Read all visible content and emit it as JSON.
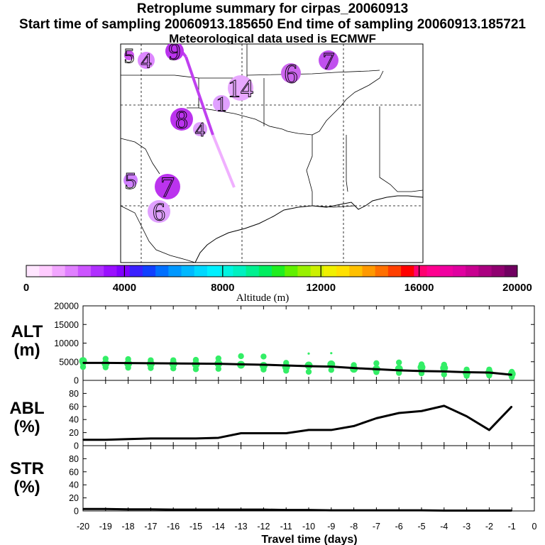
{
  "titles": {
    "line1": "Retroplume summary for cirpas_20060913",
    "line2": "Start time of sampling 20060913.185650     End time of sampling 20060913.185721",
    "line3": "Meteorological data used is ECMWF"
  },
  "colorbar": {
    "ticks": [
      "0",
      "4000",
      "8000",
      "12000",
      "16000",
      "20000"
    ],
    "label": "Altitude (m)",
    "min": 0,
    "max": 20000
  },
  "map_labels": [
    {
      "text": "5",
      "days": 5
    },
    {
      "text": "4",
      "days": 4
    },
    {
      "text": "9",
      "days": 9
    },
    {
      "text": "6",
      "days": 6
    },
    {
      "text": "7",
      "days": 7
    },
    {
      "text": "14",
      "days": 14
    },
    {
      "text": "1",
      "days": 1
    },
    {
      "text": "8",
      "days": 8
    },
    {
      "text": "4",
      "days": 4
    },
    {
      "text": "5",
      "days": 5
    },
    {
      "text": "7",
      "days": 7
    },
    {
      "text": "6",
      "days": 6
    }
  ],
  "chart_data": [
    {
      "type": "line",
      "name": "ALT",
      "ylabel": "ALT (m)",
      "ylim": [
        0,
        20000
      ],
      "yticks": [
        0,
        5000,
        10000,
        15000,
        20000
      ],
      "x": [
        -20,
        -19,
        -18,
        -17,
        -16,
        -15,
        -14,
        -13,
        -12,
        -11,
        -10,
        -9,
        -8,
        -7,
        -6,
        -5,
        -4,
        -3,
        -2,
        -1
      ],
      "values": [
        4700,
        4700,
        4650,
        4600,
        4550,
        4500,
        4450,
        4300,
        4200,
        4000,
        3800,
        3700,
        3300,
        3000,
        2700,
        2500,
        2400,
        2200,
        2100,
        1500
      ],
      "scatter_color": "#33ee66",
      "scatter": [
        {
          "x": -20,
          "y": [
            4500,
            5200,
            3600
          ]
        },
        {
          "x": -19,
          "y": [
            5800,
            4500,
            3500
          ]
        },
        {
          "x": -18,
          "y": [
            5700,
            4500,
            3400
          ]
        },
        {
          "x": -17,
          "y": [
            5400,
            4400,
            3300
          ]
        },
        {
          "x": -16,
          "y": [
            5400,
            4400,
            3200
          ]
        },
        {
          "x": -15,
          "y": [
            5500,
            4300,
            3000
          ]
        },
        {
          "x": -14,
          "y": [
            5900,
            4500,
            3100
          ]
        },
        {
          "x": -13,
          "y": [
            6500,
            4200
          ]
        },
        {
          "x": -12,
          "y": [
            6400,
            3900,
            2900
          ]
        },
        {
          "x": -11,
          "y": [
            4700,
            3600,
            2600
          ]
        },
        {
          "x": -10,
          "y": [
            7200,
            4000,
            2300
          ]
        },
        {
          "x": -9,
          "y": [
            7300,
            4300,
            2800
          ]
        },
        {
          "x": -8,
          "y": [
            4100,
            3100
          ]
        },
        {
          "x": -7,
          "y": [
            4600,
            3000,
            2200
          ]
        },
        {
          "x": -6,
          "y": [
            4800,
            3100,
            2000
          ]
        },
        {
          "x": -5,
          "y": [
            4300,
            3500,
            1900
          ]
        },
        {
          "x": -4,
          "y": [
            4200,
            3300,
            1600
          ]
        },
        {
          "x": -3,
          "y": [
            2900,
            2000,
            1200
          ]
        },
        {
          "x": -2,
          "y": [
            2900,
            2100,
            1300
          ]
        },
        {
          "x": -1,
          "y": [
            2300,
            1700,
            900
          ]
        }
      ]
    },
    {
      "type": "line",
      "name": "ABL",
      "ylabel": "ABL (%)",
      "ylim": [
        0,
        100
      ],
      "yticks": [
        0,
        20,
        40,
        60,
        80
      ],
      "x": [
        -20,
        -19,
        -18,
        -17,
        -16,
        -15,
        -14,
        -13,
        -12,
        -11,
        -10,
        -9,
        -8,
        -7,
        -6,
        -5,
        -4,
        -3,
        -2,
        -1
      ],
      "values": [
        9,
        9,
        10,
        11,
        11,
        11,
        12,
        19,
        19,
        19,
        24,
        24,
        30,
        42,
        50,
        53,
        61,
        45,
        24,
        60
      ]
    },
    {
      "type": "line",
      "name": "STR",
      "ylabel": "STR (%)",
      "ylim": [
        0,
        100
      ],
      "yticks": [
        0,
        20,
        40,
        60,
        80
      ],
      "x": [
        -20,
        -19,
        -18,
        -17,
        -16,
        -15,
        -14,
        -13,
        -12,
        -11,
        -10,
        -9,
        -8,
        -7,
        -6,
        -5,
        -4,
        -3,
        -2,
        -1
      ],
      "values": [
        3,
        3,
        2.5,
        2.5,
        2,
        2,
        2,
        2,
        2,
        1.5,
        1.5,
        1,
        1,
        1,
        1,
        1,
        0.5,
        0.5,
        0.5,
        0.5
      ]
    }
  ],
  "xaxis": {
    "title": "Travel time (days)",
    "ticks": [
      "-20",
      "-19",
      "-18",
      "-17",
      "-16",
      "-15",
      "-14",
      "-13",
      "-12",
      "-11",
      "-10",
      "-9",
      "-8",
      "-7",
      "-6",
      "-5",
      "-4",
      "-3",
      "-2",
      "-1",
      "0"
    ]
  },
  "panel_labels": {
    "alt": [
      "ALT",
      "(m)"
    ],
    "abl": [
      "ABL",
      "(%)"
    ],
    "str": [
      "STR",
      "(%)"
    ]
  }
}
